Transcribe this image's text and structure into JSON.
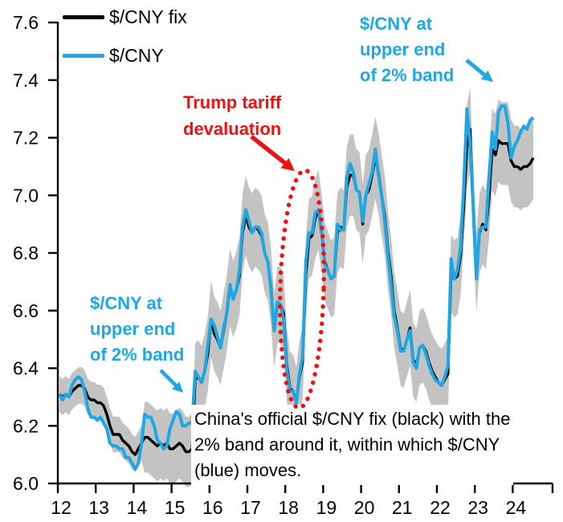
{
  "colors": {
    "fix_line": "#000000",
    "spot_line": "#1EA7E3",
    "band_fill": "#C3C3C3",
    "annotation_red": "#EE1111",
    "annotation_blue": "#1EA7E3",
    "axis": "#000000",
    "black": "#000000"
  },
  "legend": [
    {
      "label": "$/CNY fix",
      "color": "#000000"
    },
    {
      "label": "$/CNY",
      "color": "#1EA7E3"
    }
  ],
  "annotations": {
    "trump": {
      "lines": [
        "Trump tariff",
        "devaluation"
      ]
    },
    "band_left": {
      "lines": [
        "$/CNY at",
        "upper end",
        "of 2% band"
      ]
    },
    "band_right": {
      "lines": [
        "$/CNY at",
        "upper end",
        "of 2% band"
      ]
    },
    "caption": {
      "lines": [
        "China's official $/CNY fix (black) with the",
        "2% band around it, within which $/CNY",
        "(blue) moves."
      ]
    }
  },
  "chart_data": {
    "type": "line",
    "title": "",
    "xlabel": "",
    "ylabel": "",
    "x_unit": "year (2012-2024, monthly)",
    "x_start": 12.042,
    "x_step": 0.083333,
    "ylim": [
      6.0,
      7.6
    ],
    "yticks": [
      6.0,
      6.2,
      6.4,
      6.6,
      6.8,
      7.0,
      7.2,
      7.4,
      7.6
    ],
    "xticks": [
      12,
      13,
      14,
      15,
      16,
      17,
      18,
      19,
      20,
      21,
      22,
      23,
      24
    ],
    "grid": false,
    "legend_position": "top-left",
    "band": {
      "name": "trading band around fix",
      "around_series": "$/CNY fix",
      "pct_until_2014_25": 0.01,
      "pct_after_2014_25": 0.02,
      "pct_change_x": 14.25
    },
    "series": [
      {
        "name": "$/CNY fix",
        "color": "#000000",
        "values": [
          6.31,
          6.3,
          6.31,
          6.3,
          6.32,
          6.33,
          6.34,
          6.34,
          6.33,
          6.3,
          6.29,
          6.29,
          6.28,
          6.28,
          6.27,
          6.24,
          6.2,
          6.17,
          6.17,
          6.17,
          6.15,
          6.14,
          6.13,
          6.11,
          6.1,
          6.12,
          6.14,
          6.16,
          6.16,
          6.15,
          6.14,
          6.13,
          6.14,
          6.13,
          6.14,
          6.12,
          6.12,
          6.13,
          6.14,
          6.13,
          6.11,
          6.11,
          6.12,
          6.36,
          6.37,
          6.35,
          6.39,
          6.45,
          6.57,
          6.52,
          6.5,
          6.47,
          6.53,
          6.59,
          6.68,
          6.64,
          6.67,
          6.72,
          6.87,
          6.93,
          6.89,
          6.87,
          6.89,
          6.88,
          6.86,
          6.8,
          6.77,
          6.68,
          6.53,
          6.62,
          6.62,
          6.59,
          6.41,
          6.33,
          6.32,
          6.28,
          6.37,
          6.42,
          6.72,
          6.85,
          6.86,
          6.92,
          6.95,
          6.87,
          6.77,
          6.74,
          6.71,
          6.72,
          6.87,
          6.89,
          6.88,
          7.03,
          7.07,
          7.07,
          7.02,
          7.01,
          6.9,
          7.0,
          7.02,
          7.07,
          7.13,
          7.08,
          7.0,
          6.93,
          6.81,
          6.72,
          6.6,
          6.54,
          6.47,
          6.46,
          6.5,
          6.54,
          6.43,
          6.41,
          6.47,
          6.48,
          6.46,
          6.42,
          6.39,
          6.37,
          6.35,
          6.34,
          6.36,
          6.38,
          6.73,
          6.71,
          6.72,
          6.79,
          6.96,
          7.17,
          7.23,
          6.96,
          6.73,
          6.87,
          6.9,
          6.88,
          6.99,
          7.16,
          7.14,
          7.19,
          7.18,
          7.18,
          7.18,
          7.12,
          7.1,
          7.1,
          7.09,
          7.1,
          7.1,
          7.11,
          7.13
        ]
      },
      {
        "name": "$/CNY",
        "color": "#1EA7E3",
        "values": [
          6.31,
          6.29,
          6.31,
          6.3,
          6.34,
          6.36,
          6.37,
          6.36,
          6.32,
          6.26,
          6.23,
          6.23,
          6.22,
          6.23,
          6.21,
          6.19,
          6.14,
          6.13,
          6.13,
          6.12,
          6.12,
          6.09,
          6.09,
          6.07,
          6.05,
          6.07,
          6.14,
          6.24,
          6.23,
          6.23,
          6.2,
          6.15,
          6.14,
          6.12,
          6.13,
          6.19,
          6.22,
          6.25,
          6.24,
          6.2,
          6.2,
          6.21,
          6.21,
          6.39,
          6.37,
          6.35,
          6.39,
          6.48,
          6.57,
          6.55,
          6.51,
          6.47,
          6.54,
          6.59,
          6.69,
          6.64,
          6.67,
          6.74,
          6.89,
          6.95,
          6.91,
          6.87,
          6.89,
          6.89,
          6.87,
          6.8,
          6.77,
          6.67,
          6.53,
          6.63,
          6.62,
          6.57,
          6.39,
          6.32,
          6.32,
          6.28,
          6.38,
          6.44,
          6.77,
          6.87,
          6.87,
          6.94,
          6.95,
          6.88,
          6.76,
          6.74,
          6.71,
          6.72,
          6.9,
          6.88,
          6.88,
          7.06,
          7.11,
          7.08,
          7.02,
          7.01,
          6.91,
          7.0,
          7.04,
          7.08,
          7.16,
          7.07,
          7.0,
          6.91,
          6.79,
          6.69,
          6.58,
          6.53,
          6.46,
          6.46,
          6.5,
          6.53,
          6.42,
          6.4,
          6.47,
          6.48,
          6.45,
          6.41,
          6.38,
          6.36,
          6.35,
          6.34,
          6.37,
          6.41,
          6.78,
          6.71,
          6.74,
          6.82,
          7.03,
          7.3,
          7.18,
          6.96,
          6.71,
          6.88,
          6.89,
          6.89,
          7.06,
          7.22,
          7.16,
          7.29,
          7.31,
          7.31,
          7.25,
          7.13,
          7.17,
          7.19,
          7.22,
          7.24,
          7.23,
          7.26,
          7.27
        ]
      }
    ]
  }
}
